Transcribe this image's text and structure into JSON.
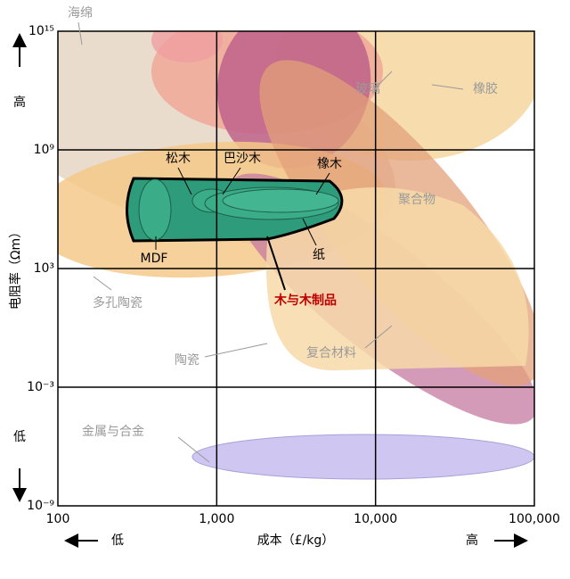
{
  "chart_data": {
    "type": "region",
    "x_label": "成本（£/kg）",
    "y_label": "电阻率（Ωm）",
    "x_low": "低",
    "x_high": "高",
    "y_low": "低",
    "y_high": "高",
    "x_log": true,
    "y_log": true,
    "grid": true,
    "xlim": [
      100,
      100000
    ],
    "ylim": [
      1e-09,
      1000000000000000.0
    ],
    "xticks": [
      {
        "value": 100,
        "label": "100"
      },
      {
        "value": 1000,
        "label": "1,000"
      },
      {
        "value": 10000,
        "label": "10,000"
      },
      {
        "value": 100000,
        "label": "100,000"
      }
    ],
    "yticks": [
      {
        "value": 1e-09,
        "label": "10⁻⁹"
      },
      {
        "value": 0.001,
        "label": "10⁻³"
      },
      {
        "value": 1000,
        "label": "10³"
      },
      {
        "value": 1000000000.0,
        "label": "10⁹"
      },
      {
        "value": 1000000000000000.0,
        "label": "10¹⁵"
      }
    ],
    "regions": [
      "海绵",
      "玻璃",
      "橡胶",
      "聚合物",
      "多孔陶瓷",
      "陶瓷",
      "复合材料",
      "金属与合金"
    ],
    "wood_labels": [
      "松木",
      "巴沙木",
      "橡木",
      "MDF",
      "纸"
    ],
    "wood_title": "木与木制品"
  }
}
